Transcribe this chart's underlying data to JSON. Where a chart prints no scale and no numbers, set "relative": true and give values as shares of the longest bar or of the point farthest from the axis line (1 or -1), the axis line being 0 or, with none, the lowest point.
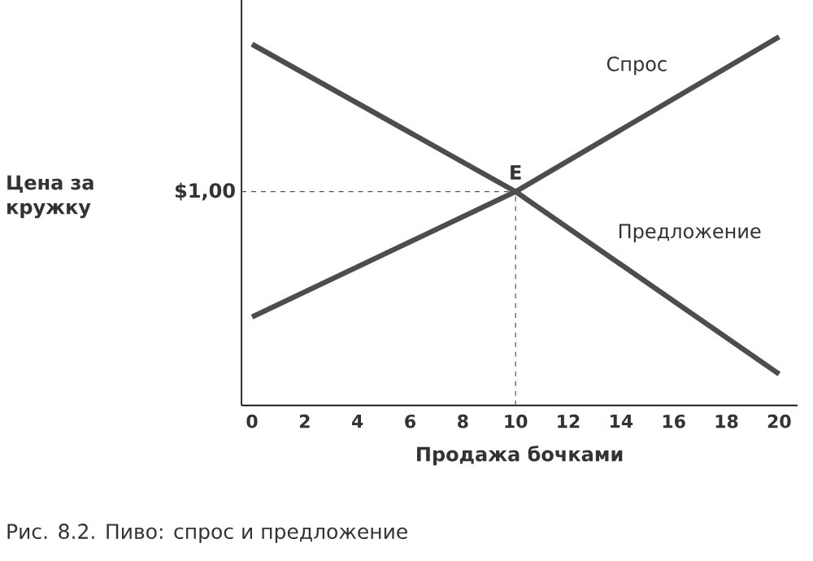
{
  "chart_data": {
    "type": "line",
    "relative": true,
    "xlabel": "Продажа бочками",
    "xlim": [
      -0.4,
      20.7
    ],
    "xticks": [
      0,
      2,
      4,
      6,
      8,
      10,
      12,
      14,
      16,
      18,
      20
    ],
    "x": [
      0,
      10,
      20
    ],
    "series": [
      {
        "name": "Спрос",
        "color": "#4d4d4d",
        "values": [
          0.24,
          0.58,
          1.0
        ]
      },
      {
        "name": "Предложение",
        "color": "#4d4d4d",
        "values": [
          0.98,
          0.58,
          0.085
        ]
      }
    ],
    "ref_lines": [
      {
        "axis": "y",
        "value": 0.58,
        "label": null,
        "color": "#555555",
        "line_style": "dashed"
      },
      {
        "axis": "x",
        "value": 10,
        "label": null,
        "color": "#555555",
        "line_style": "dashed"
      }
    ],
    "annotations": [
      {
        "text": "E",
        "x": 10,
        "y": 0.58
      },
      "$1,00",
      "Цена за кружку",
      "Рис. 8.2.  Пиво: спрос и предложение"
    ]
  }
}
